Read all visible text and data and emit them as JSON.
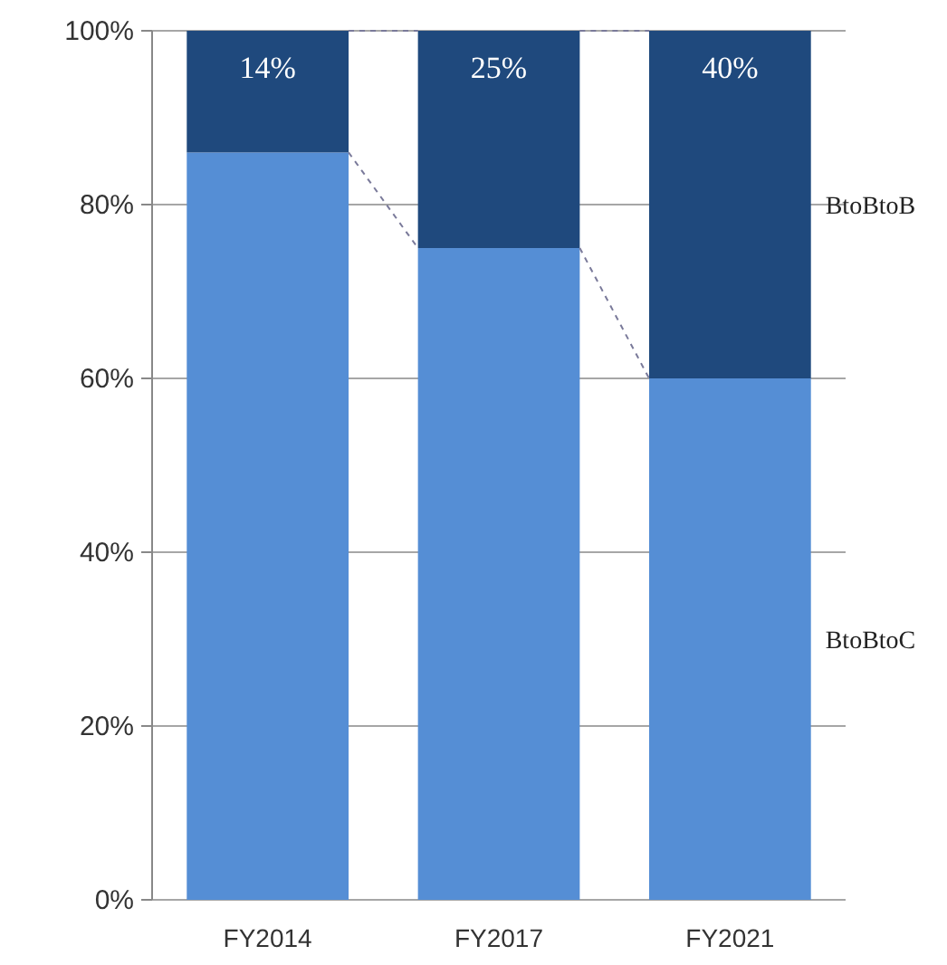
{
  "chart_data": {
    "type": "bar",
    "stacked": true,
    "categories": [
      "FY2014",
      "FY2017",
      "FY2021"
    ],
    "series": [
      {
        "name": "BtoBtoC",
        "color": "#558ed5",
        "values": [
          86,
          75,
          60
        ]
      },
      {
        "name": "BtoBtoB",
        "color": "#1f497d",
        "values": [
          14,
          25,
          40
        ],
        "value_labels": [
          "14%",
          "25%",
          "40%"
        ]
      }
    ],
    "ylim": [
      0,
      100
    ],
    "yticks": [
      {
        "value": 0,
        "label": "0%"
      },
      {
        "value": 20,
        "label": "20%"
      },
      {
        "value": 40,
        "label": "40%"
      },
      {
        "value": 60,
        "label": "60%"
      },
      {
        "value": 80,
        "label": "80%"
      },
      {
        "value": 100,
        "label": "100%"
      }
    ],
    "grid": "y"
  }
}
